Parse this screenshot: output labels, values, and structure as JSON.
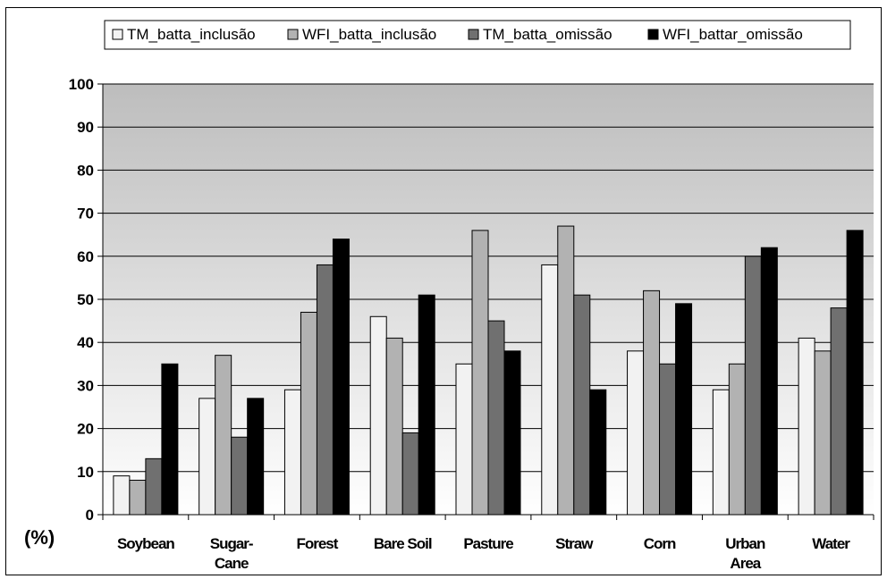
{
  "chart_data": {
    "type": "bar",
    "categories": [
      "Soybean",
      "Sugar-Cane",
      "Forest",
      "Bare Soil",
      "Pasture",
      "Straw",
      "Corn",
      "Urban Area",
      "Water"
    ],
    "category_lines": [
      [
        "Soybean"
      ],
      [
        "Sugar-",
        "Cane"
      ],
      [
        "Forest"
      ],
      [
        "Bare Soil"
      ],
      [
        "Pasture"
      ],
      [
        "Straw"
      ],
      [
        "Corn"
      ],
      [
        "Urban",
        "Area"
      ],
      [
        "Water"
      ]
    ],
    "series": [
      {
        "name": "TM_batta_inclusão",
        "color": "#f2f2f2",
        "values": [
          9,
          27,
          29,
          46,
          35,
          58,
          38,
          29,
          41
        ]
      },
      {
        "name": "WFI_batta_inclusão",
        "color": "#b2b2b2",
        "values": [
          8,
          37,
          47,
          41,
          66,
          67,
          52,
          35,
          38
        ]
      },
      {
        "name": "TM_batta_omissão",
        "color": "#707070",
        "values": [
          13,
          18,
          58,
          19,
          45,
          51,
          35,
          60,
          48
        ]
      },
      {
        "name": "WFI_battar_omissão",
        "color": "#000000",
        "values": [
          35,
          27,
          64,
          51,
          38,
          29,
          49,
          62,
          66
        ]
      }
    ],
    "ylabel": "(%)",
    "ylim": [
      0,
      100
    ],
    "yticks": [
      0,
      10,
      20,
      30,
      40,
      50,
      60,
      70,
      80,
      90,
      100
    ],
    "grid": true,
    "legend_position": "top",
    "background_gradient": [
      "#bdbdbd",
      "#ffffff"
    ]
  }
}
